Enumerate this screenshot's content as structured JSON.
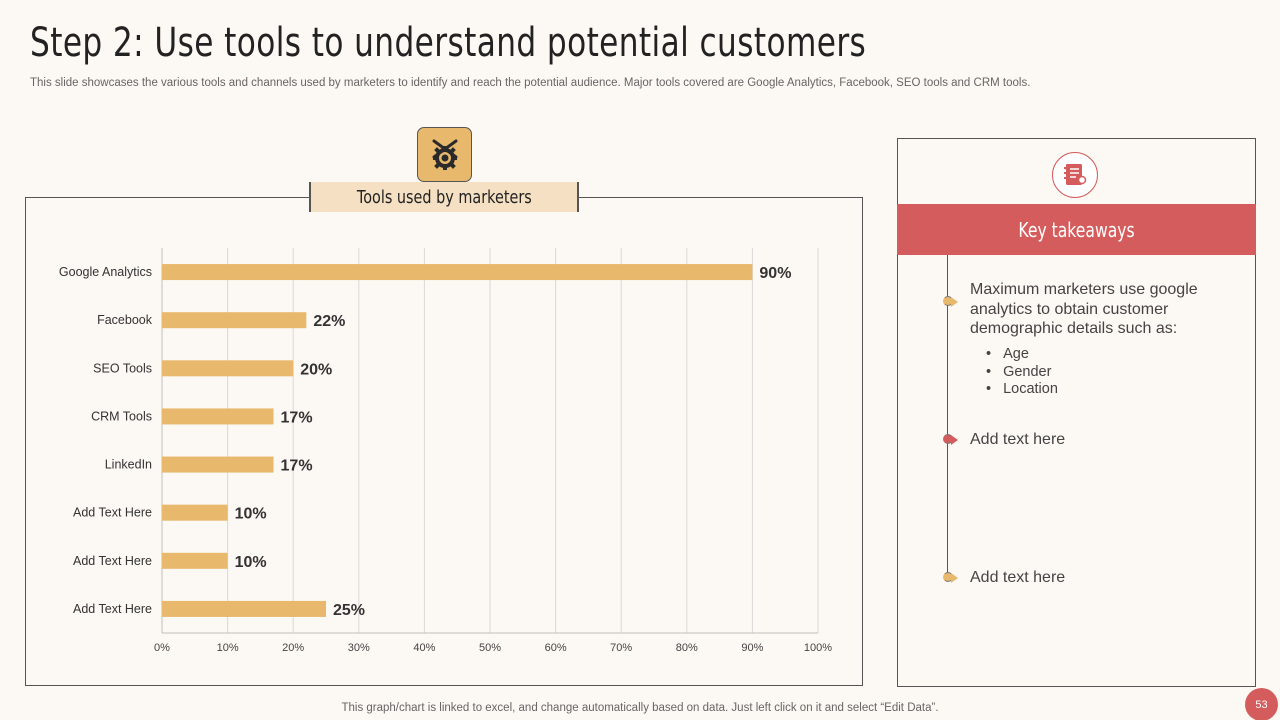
{
  "title": "Step 2: Use tools to understand potential customers",
  "subtitle": "This slide showcases the various tools and channels used by marketers to identify and reach the potential audience. Major tools covered are Google Analytics, Facebook, SEO tools and CRM tools.",
  "chart_banner": "Tools used by marketers",
  "chart_data": {
    "type": "bar",
    "orientation": "horizontal",
    "categories": [
      "Google Analytics",
      "Facebook",
      "SEO Tools",
      "CRM Tools",
      "LinkedIn",
      "Add Text Here",
      "Add Text Here",
      "Add Text Here"
    ],
    "values": [
      90,
      22,
      20,
      17,
      17,
      10,
      10,
      25
    ],
    "value_labels": [
      "90%",
      "22%",
      "20%",
      "17%",
      "17%",
      "10%",
      "10%",
      "25%"
    ],
    "xticks": [
      "0%",
      "10%",
      "20%",
      "30%",
      "40%",
      "50%",
      "60%",
      "70%",
      "80%",
      "90%",
      "100%"
    ],
    "xlim": [
      0,
      100
    ],
    "bar_color": "#e8b86d",
    "grid": "vertical"
  },
  "key_takeaways": {
    "header": "Key takeaways",
    "item1": "Maximum marketers use google analytics to obtain customer demographic details such as:",
    "bullets": [
      "Age",
      "Gender",
      "Location"
    ],
    "item2": "Add text here",
    "item3": "Add text here"
  },
  "colors": {
    "accent": "#d45c5c",
    "bar": "#e8b86d",
    "banner": "#f5e0c3",
    "background": "#fcf8f3"
  },
  "footer": "This graph/chart is linked to excel, and change automatically based on data. Just left click on it and select “Edit Data”.",
  "page_number": "53"
}
